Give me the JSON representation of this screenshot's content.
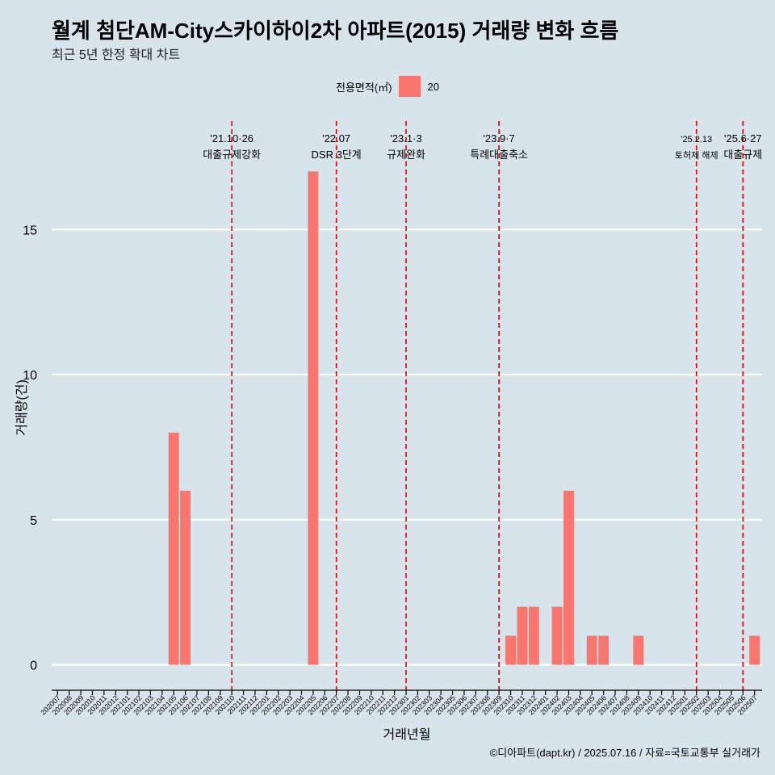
{
  "title": "월계 첨단AM-City스카이하이2차 아파트(2015) 거래량 변화 흐름",
  "subtitle": "최근 5년 한정 확대 차트",
  "caption": "©디아파트(dapt.kr) / 2025.07.16 / 자료=국토교통부 실거래가",
  "legend": {
    "title": "전용면적(㎡)",
    "items": [
      {
        "label": "20",
        "color": "#f8766d"
      }
    ]
  },
  "chart_data": {
    "type": "bar",
    "xlabel": "거래년월",
    "ylabel": "거래량(건)",
    "ylim": [
      0,
      17
    ],
    "yticks": [
      0,
      5,
      10,
      15
    ],
    "bar_color": "#f8766d",
    "categories": [
      "202007",
      "202008",
      "202009",
      "202010",
      "202011",
      "202012",
      "202101",
      "202102",
      "202103",
      "202104",
      "202105",
      "202106",
      "202107",
      "202108",
      "202109",
      "202110",
      "202111",
      "202112",
      "202201",
      "202202",
      "202203",
      "202204",
      "202205",
      "202206",
      "202207",
      "202208",
      "202209",
      "202210",
      "202211",
      "202212",
      "202301",
      "202302",
      "202303",
      "202304",
      "202305",
      "202306",
      "202307",
      "202308",
      "202309",
      "202310",
      "202311",
      "202312",
      "202401",
      "202402",
      "202403",
      "202404",
      "202405",
      "202406",
      "202407",
      "202408",
      "202409",
      "202410",
      "202411",
      "202412",
      "202501",
      "202502",
      "202503",
      "202504",
      "202505",
      "202506",
      "202507"
    ],
    "series": [
      {
        "name": "20",
        "values": [
          0,
          0,
          0,
          0,
          0,
          0,
          0,
          0,
          0,
          0,
          8,
          6,
          0,
          0,
          0,
          0,
          0,
          0,
          0,
          0,
          0,
          0,
          17,
          0,
          0,
          0,
          0,
          0,
          0,
          0,
          0,
          0,
          0,
          0,
          0,
          0,
          0,
          0,
          0,
          1,
          2,
          2,
          0,
          2,
          6,
          0,
          1,
          1,
          0,
          0,
          1,
          0,
          0,
          0,
          0,
          0,
          0,
          0,
          0,
          0,
          1
        ]
      }
    ],
    "annotations": [
      {
        "at": "202110",
        "date": "'21.10·26",
        "label": "대출규제강화"
      },
      {
        "at": "202207",
        "date": "'22.07",
        "label": "DSR 3단계"
      },
      {
        "at": "202301",
        "date": "'23.1·3",
        "label": "규제완화"
      },
      {
        "at": "202309",
        "date": "'23.9·7",
        "label": "특례대출축소"
      },
      {
        "at": "202502",
        "date": "'25.2.13",
        "label": "토허제 해제"
      },
      {
        "at": "202506",
        "date": "'25.6·27",
        "label": "대출규제"
      }
    ]
  }
}
